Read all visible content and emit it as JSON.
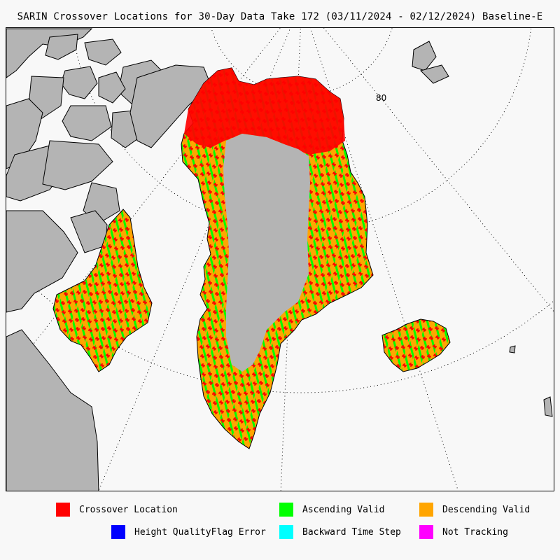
{
  "title": "SARIN Crossover Locations for 30-Day Data Take 172 (03/11/2024 - 02/12/2024) Baseline-E",
  "map": {
    "latitude_label": "80",
    "colors": {
      "ocean": "#f8f8f8",
      "land": "#b4b4b4",
      "ice_interior": "#b4b4b4",
      "coastline": "#000000",
      "graticule": "#000000"
    }
  },
  "legend": {
    "items": [
      {
        "label": "Crossover Location",
        "color": "#ff0000",
        "icon": "red-square"
      },
      {
        "label": "Ascending Valid",
        "color": "#00ff00",
        "icon": "green-square"
      },
      {
        "label": "Descending Valid",
        "color": "#ffa500",
        "icon": "orange-square"
      },
      {
        "label": "Height QualityFlag Error",
        "color": "#0000ff",
        "icon": "blue-square"
      },
      {
        "label": "Backward Time Step",
        "color": "#00ffff",
        "icon": "cyan-square"
      },
      {
        "label": "Not Tracking",
        "color": "#ff00ff",
        "icon": "magenta-square"
      }
    ]
  }
}
